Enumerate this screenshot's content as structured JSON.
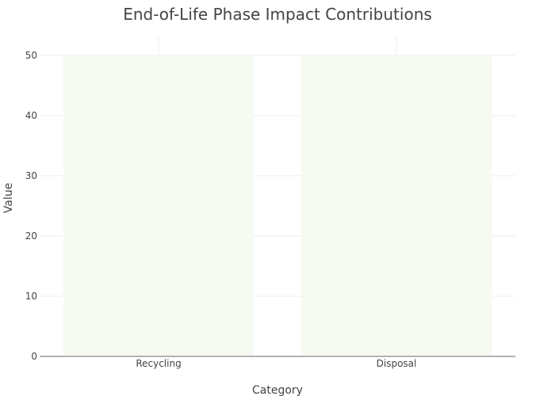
{
  "chart_data": {
    "type": "bar",
    "title": "End-of-Life Phase Impact Contributions",
    "xlabel": "Category",
    "ylabel": "Value",
    "categories": [
      "Recycling",
      "Disposal"
    ],
    "values": [
      50,
      50
    ],
    "ylim": [
      0,
      53
    ],
    "yticks": [
      0,
      10,
      20,
      30,
      40,
      50
    ],
    "grid": true,
    "bar_color": "#f5faf2"
  }
}
